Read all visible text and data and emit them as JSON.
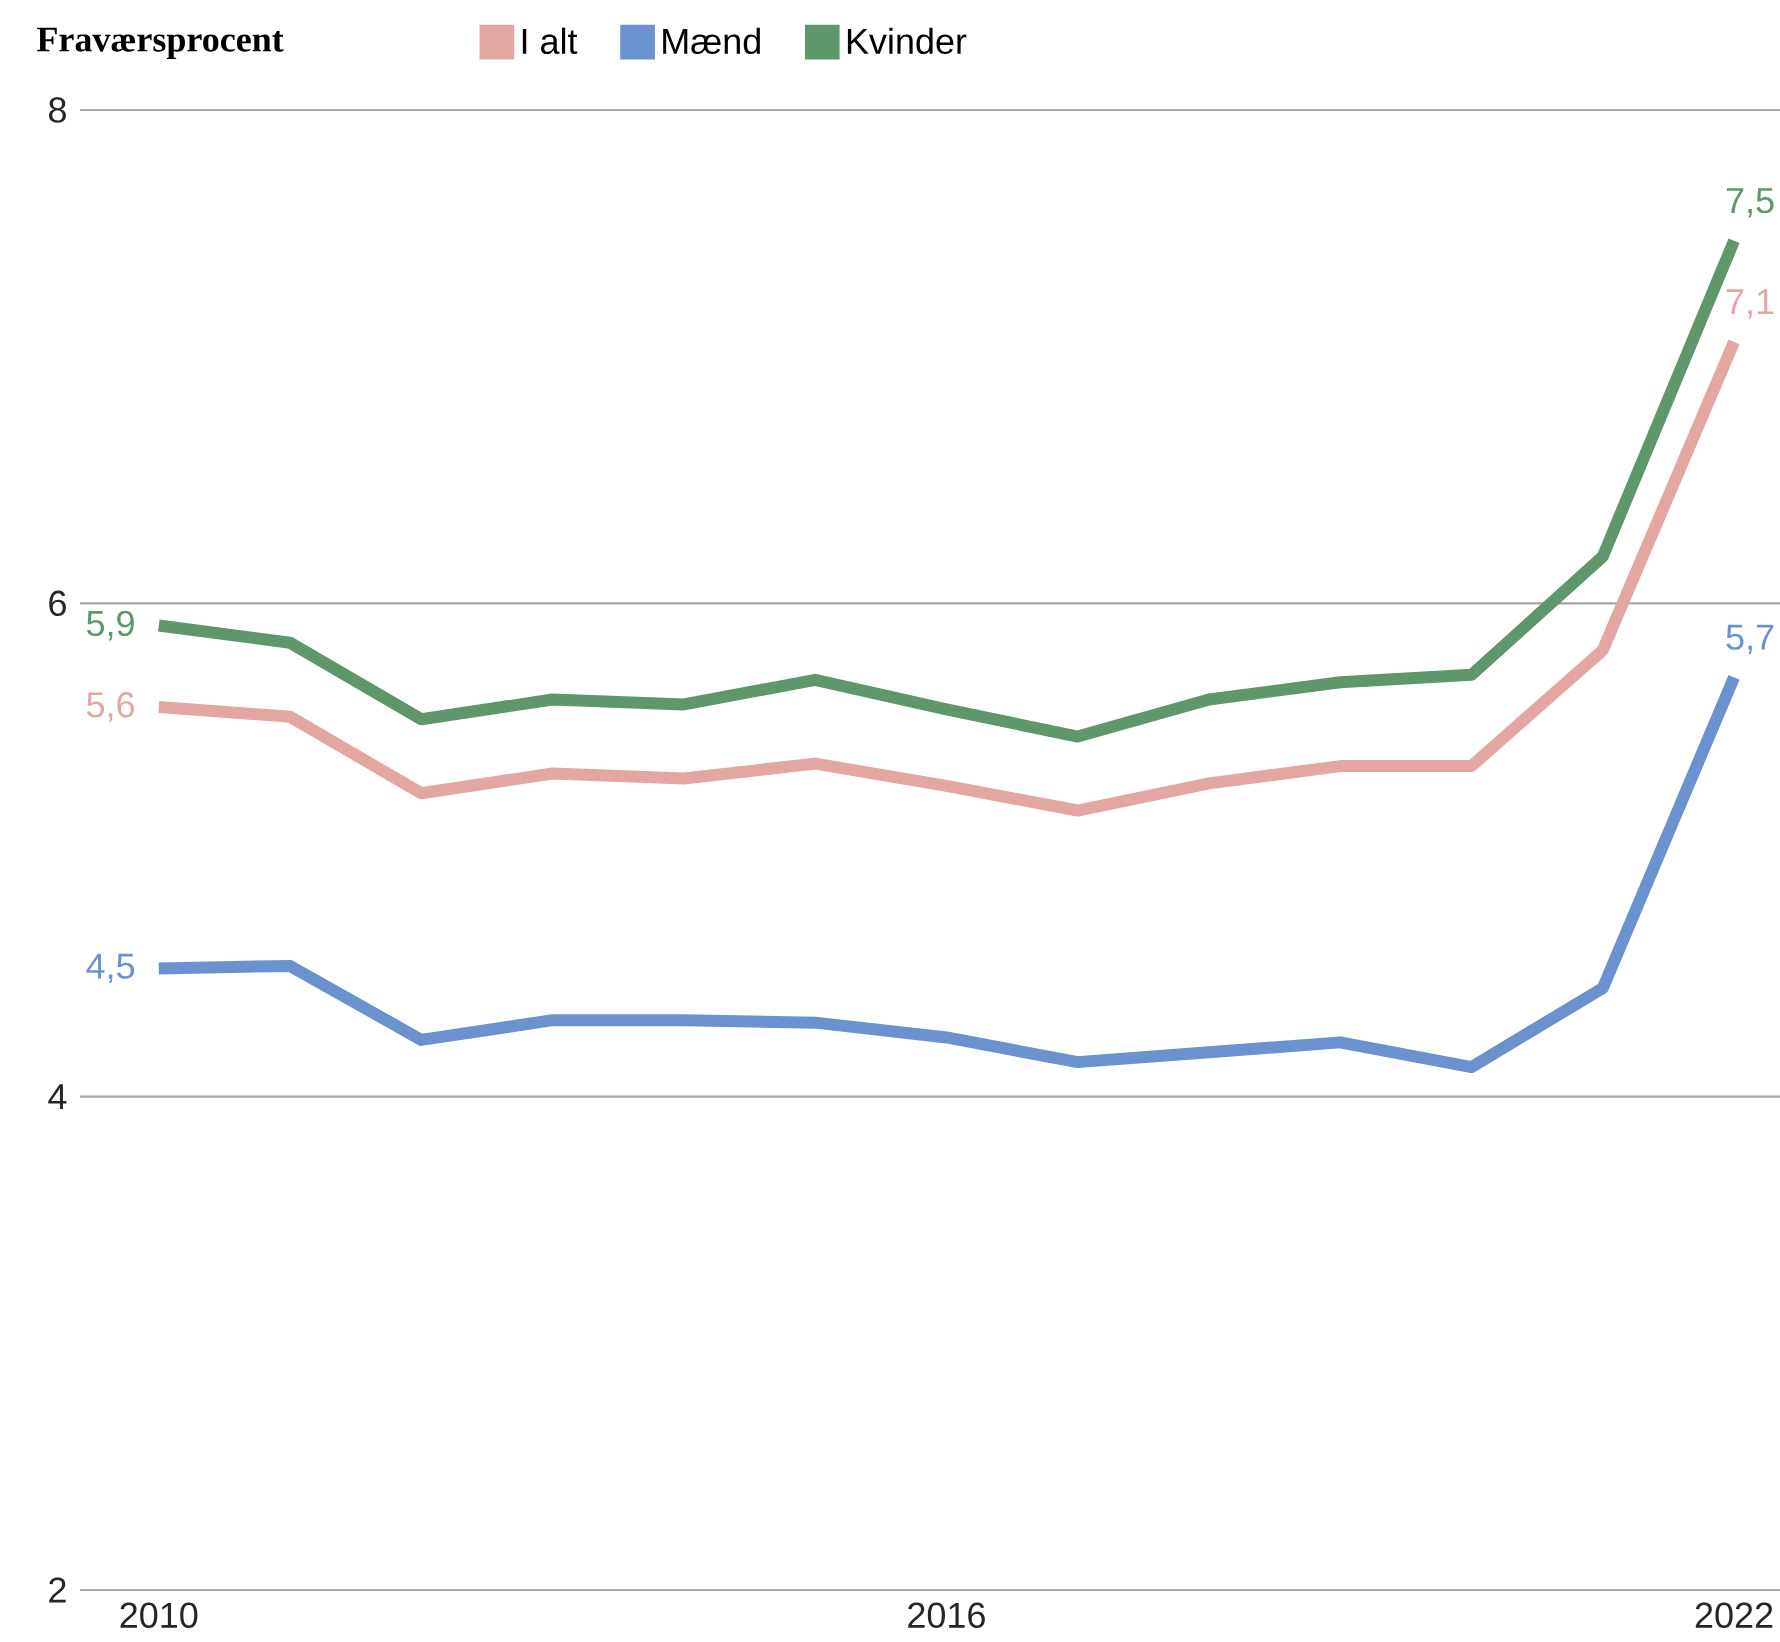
{
  "chart_data": {
    "type": "line",
    "ylabel": "Fraværsprocent",
    "x": [
      2010,
      2011,
      2012,
      2013,
      2014,
      2015,
      2016,
      2017,
      2018,
      2019,
      2020,
      2021,
      2022
    ],
    "series": [
      {
        "name": "I alt",
        "color": "#e3a6a3",
        "values": [
          5.58,
          5.54,
          5.23,
          5.31,
          5.29,
          5.35,
          5.26,
          5.16,
          5.27,
          5.34,
          5.34,
          5.81,
          7.06
        ],
        "value_labels": [
          "5,6",
          null,
          null,
          null,
          null,
          null,
          null,
          null,
          null,
          null,
          null,
          null,
          "7,1"
        ]
      },
      {
        "name": "Mænd",
        "color": "#6a92cf",
        "values": [
          4.52,
          4.53,
          4.23,
          4.31,
          4.31,
          4.3,
          4.24,
          4.14,
          4.18,
          4.22,
          4.12,
          4.44,
          5.7
        ],
        "value_labels": [
          "4,5",
          null,
          null,
          null,
          null,
          null,
          null,
          null,
          null,
          null,
          null,
          null,
          "5,7"
        ]
      },
      {
        "name": "Kvinder",
        "color": "#5e976b",
        "values": [
          5.91,
          5.84,
          5.53,
          5.61,
          5.59,
          5.69,
          5.57,
          5.46,
          5.61,
          5.68,
          5.71,
          6.19,
          7.47
        ],
        "value_labels": [
          "5,9",
          null,
          null,
          null,
          null,
          null,
          null,
          null,
          null,
          null,
          null,
          null,
          "7,5"
        ]
      }
    ],
    "xlim": [
      2009.4,
      2022.35
    ],
    "ylim": [
      2,
      8
    ],
    "xticks": [
      2010,
      2016,
      2022
    ],
    "yticks": [
      2,
      4,
      6,
      8
    ],
    "grid": "y",
    "legend": "top"
  }
}
